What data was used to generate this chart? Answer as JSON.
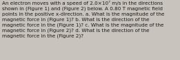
{
  "text": "An electron moves with a speed of 2.0×10⁷ m/s in the directions\nshown in (Figure 1) and (Figure 2) below. A 0.80 T magnetic field\npoints in the positive x-direction. a. What is the magnitude of the\nmagnetic force in (Figure 1)? b. What is the direction of the\nmagnetic force in the (Figure 1)? c. What is the magnitude of the\nmagnetic force in (Figure 2)? d. What is the direction of the\nmagnetic force in the (Figure 2)?",
  "background_color": "#c8c3bc",
  "text_color": "#1a1a1a",
  "font_size": 5.2,
  "figwidth": 2.61,
  "figheight": 0.88,
  "dpi": 100
}
